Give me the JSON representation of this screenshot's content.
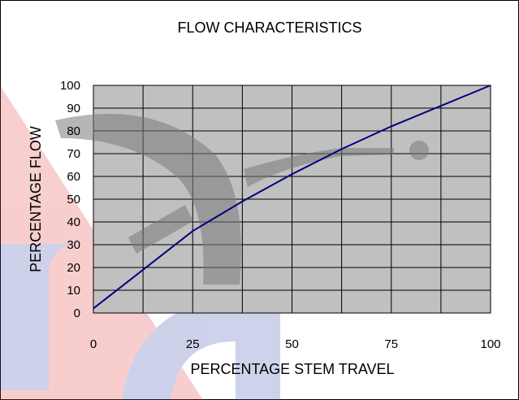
{
  "chart_data": {
    "type": "line",
    "title": "FLOW CHARACTERISTICS",
    "xlabel": "PERCENTAGE STEM TRAVEL",
    "ylabel": "PERCENTAGE FLOW",
    "x_tick_labels": [
      "0",
      "25",
      "50",
      "75",
      "100"
    ],
    "x_tick_values": [
      0,
      25,
      50,
      75,
      100
    ],
    "y_tick_labels": [
      "0",
      "10",
      "20",
      "30",
      "40",
      "50",
      "60",
      "70",
      "80",
      "90",
      "100"
    ],
    "y_tick_values": [
      0,
      10,
      20,
      30,
      40,
      50,
      60,
      70,
      80,
      90,
      100
    ],
    "xlim": [
      0,
      100
    ],
    "ylim": [
      0,
      100
    ],
    "grid": true,
    "x_grid_step": 12.5,
    "y_grid_step": 10,
    "series": [
      {
        "x": [
          0,
          12.5,
          25,
          37.5,
          50,
          62.5,
          75,
          87.5,
          100
        ],
        "y": [
          2,
          19,
          36,
          49,
          61,
          72,
          82,
          91,
          100
        ]
      }
    ],
    "colors": {
      "plot_background": "#c0c0c0",
      "grid": "#000000",
      "line": "#000080",
      "watermark_gray": "#7a7a7a",
      "watermark_red": "#e0403c",
      "watermark_blue": "#3c4db0"
    }
  }
}
